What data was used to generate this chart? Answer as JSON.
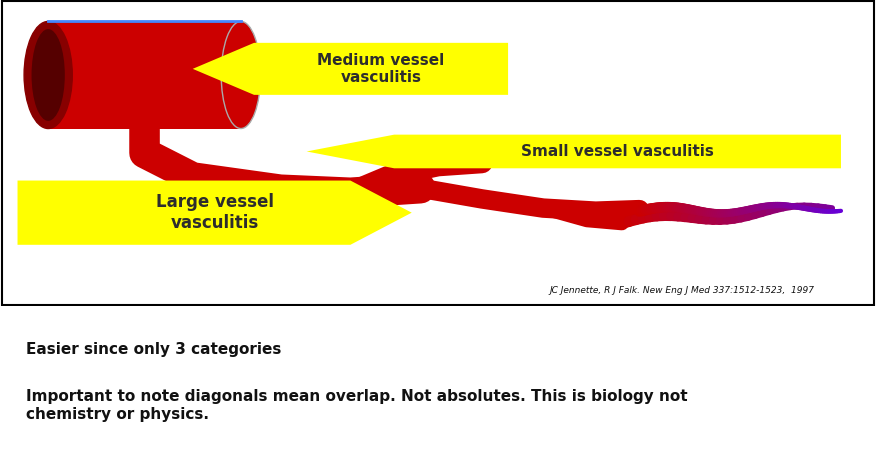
{
  "bg_color": "#ffffff",
  "box_bg": "#ffffff",
  "box_border": "#000000",
  "yellow": "#ffff00",
  "dark_text": "#2d2d2d",
  "red": "#cc0000",
  "purple": "#7b3f9e",
  "label1": "Medium vessel\nvasculitis",
  "label2": "Small vessel vasculitis",
  "label3": "Large vessel\nvasculitis",
  "citation": "JC Jennette, R J Falk. New Eng J Med 337:1512-1523,  1997",
  "line1": "Easier since only 3 categories",
  "line2": "Important to note diagonals mean overlap. Not absolutes. This is biology not\nchemistry or physics.",
  "fig_width": 8.76,
  "fig_height": 4.5,
  "dpi": 100
}
